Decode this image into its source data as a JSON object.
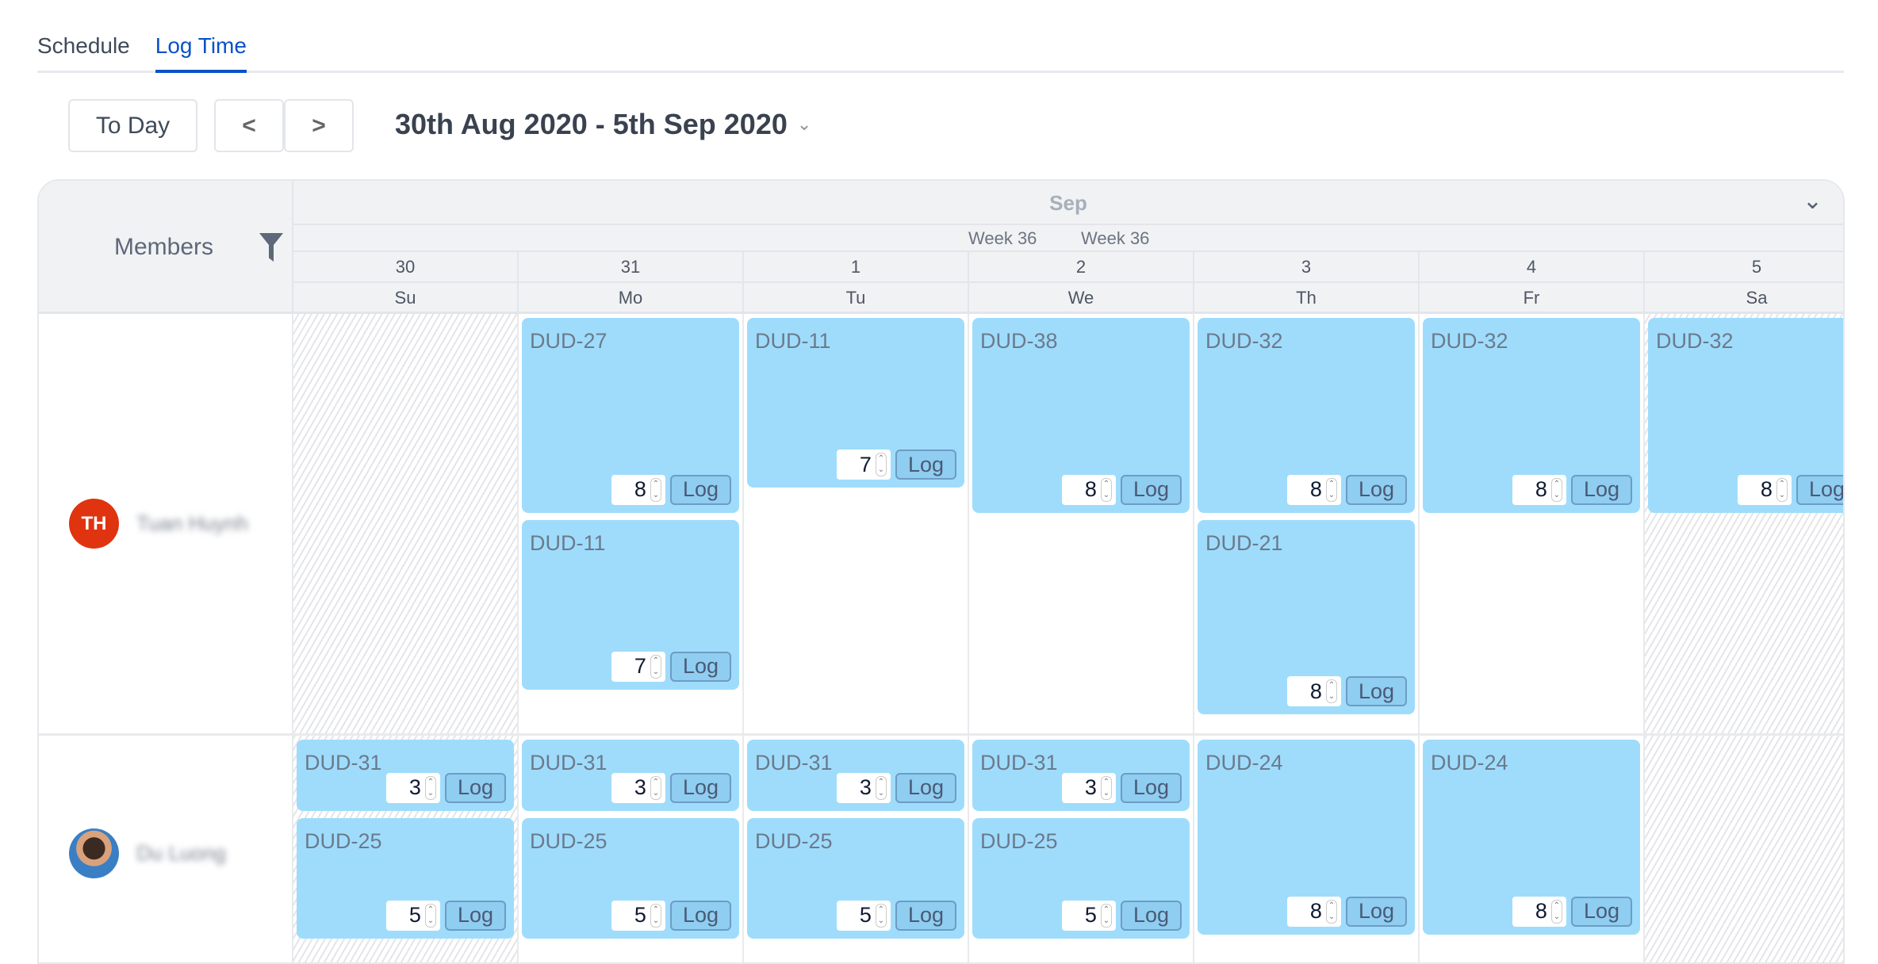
{
  "tabs": [
    {
      "label": "Schedule",
      "active": false
    },
    {
      "label": "Log Time",
      "active": true
    }
  ],
  "toolbar": {
    "today_label": "To Day",
    "prev_label": "<",
    "next_label": ">",
    "date_range": "30th Aug 2020 - 5th Sep 2020",
    "chevron_icon": "chevron-down-icon"
  },
  "calendar": {
    "members_label": "Members",
    "filter_icon": "filter-icon",
    "month": "Sep",
    "weeks": [
      "Week 36",
      "Week 36"
    ],
    "dates": [
      "30",
      "31",
      "1",
      "2",
      "3",
      "4",
      "5"
    ],
    "days": [
      "Su",
      "Mo",
      "Tu",
      "We",
      "Th",
      "Fr",
      "Sa"
    ],
    "weekend_days": [
      0,
      6
    ],
    "log_label": "Log",
    "event_color": "#9fdcfb",
    "rows": [
      {
        "initials": "TH",
        "name": "Tuan Huynh",
        "avatar_color": "#e0330f",
        "cells": [
          [],
          [
            {
              "key": "DUD-27",
              "hours": 8
            },
            {
              "key": "DUD-11",
              "hours": 7
            }
          ],
          [
            {
              "key": "DUD-11",
              "hours": 7
            }
          ],
          [
            {
              "key": "DUD-38",
              "hours": 8
            }
          ],
          [
            {
              "key": "DUD-32",
              "hours": 8
            },
            {
              "key": "DUD-21",
              "hours": 8
            }
          ],
          [
            {
              "key": "DUD-32",
              "hours": 8
            }
          ],
          [
            {
              "key": "DUD-32",
              "hours": 8
            }
          ]
        ]
      },
      {
        "initials": "",
        "name": "Du Luong",
        "avatar_color": "#3a7fc4",
        "cells": [
          [
            {
              "key": "DUD-31",
              "hours": 3
            },
            {
              "key": "DUD-25",
              "hours": 5
            }
          ],
          [
            {
              "key": "DUD-31",
              "hours": 3
            },
            {
              "key": "DUD-25",
              "hours": 5
            }
          ],
          [
            {
              "key": "DUD-31",
              "hours": 3
            },
            {
              "key": "DUD-25",
              "hours": 5
            }
          ],
          [
            {
              "key": "DUD-31",
              "hours": 3
            },
            {
              "key": "DUD-25",
              "hours": 5
            }
          ],
          [
            {
              "key": "DUD-24",
              "hours": 8
            }
          ],
          [
            {
              "key": "DUD-24",
              "hours": 8
            }
          ],
          []
        ]
      }
    ]
  }
}
